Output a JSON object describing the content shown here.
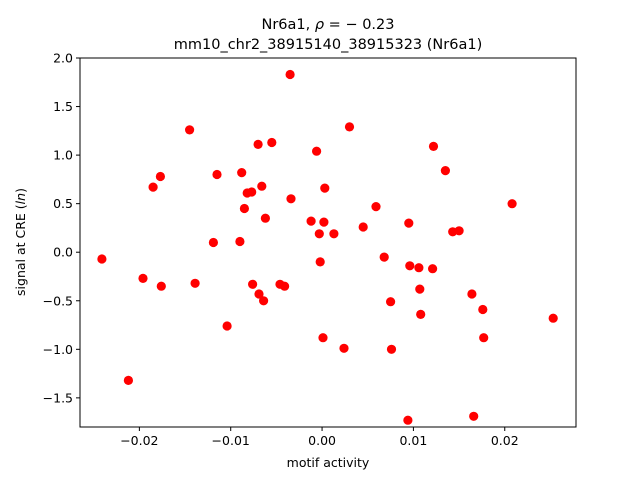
{
  "chart_data": {
    "type": "scatter",
    "title_line1_prefix": "Nr6a1, ",
    "title_line1_rho": "ρ",
    "title_line1_suffix": " = − 0.23",
    "title_line2": "mm10_chr2_38915140_38915323 (Nr6a1)",
    "xlabel": "motif activity",
    "ylabel_prefix": "signal at CRE (",
    "ylabel_italic": "ln",
    "ylabel_suffix": ")",
    "xlim": [
      -0.0265,
      0.0278
    ],
    "ylim": [
      -1.8,
      2.0
    ],
    "xticks": [
      -0.02,
      -0.01,
      0.0,
      0.01,
      0.02
    ],
    "xtick_labels": [
      "−0.02",
      "−0.01",
      "0.00",
      "0.01",
      "0.02"
    ],
    "yticks": [
      -1.5,
      -1.0,
      -0.5,
      0.0,
      0.5,
      1.0,
      1.5,
      2.0
    ],
    "ytick_labels": [
      "−1.5",
      "−1.0",
      "−0.5",
      "0.0",
      "0.5",
      "1.0",
      "1.5",
      "2.0"
    ],
    "grid": false,
    "marker_color": "#ff0000",
    "points": [
      [
        -0.0241,
        -0.07
      ],
      [
        -0.0212,
        -1.32
      ],
      [
        -0.0196,
        -0.27
      ],
      [
        -0.0185,
        0.67
      ],
      [
        -0.0177,
        0.78
      ],
      [
        -0.0176,
        -0.35
      ],
      [
        -0.0145,
        1.26
      ],
      [
        -0.0139,
        -0.32
      ],
      [
        -0.0119,
        0.1
      ],
      [
        -0.0115,
        0.8
      ],
      [
        -0.0104,
        -0.76
      ],
      [
        -0.009,
        0.11
      ],
      [
        -0.0088,
        0.82
      ],
      [
        -0.0085,
        0.45
      ],
      [
        -0.0082,
        0.61
      ],
      [
        -0.0077,
        0.62
      ],
      [
        -0.0076,
        -0.33
      ],
      [
        -0.007,
        1.11
      ],
      [
        -0.0069,
        -0.43
      ],
      [
        -0.0066,
        0.68
      ],
      [
        -0.0064,
        -0.5
      ],
      [
        -0.0062,
        0.35
      ],
      [
        -0.0055,
        1.13
      ],
      [
        -0.0046,
        -0.33
      ],
      [
        -0.0041,
        -0.35
      ],
      [
        -0.0035,
        1.83
      ],
      [
        -0.0034,
        0.55
      ],
      [
        -0.0012,
        0.32
      ],
      [
        -0.0006,
        1.04
      ],
      [
        -0.0003,
        0.19
      ],
      [
        -0.0002,
        -0.1
      ],
      [
        0.0001,
        -0.88
      ],
      [
        0.0002,
        0.31
      ],
      [
        0.0003,
        0.66
      ],
      [
        0.0013,
        0.19
      ],
      [
        0.0024,
        -0.99
      ],
      [
        0.003,
        1.29
      ],
      [
        0.0045,
        0.26
      ],
      [
        0.0059,
        0.47
      ],
      [
        0.0068,
        -0.05
      ],
      [
        0.0075,
        -0.51
      ],
      [
        0.0076,
        -1.0
      ],
      [
        0.0094,
        -1.73
      ],
      [
        0.0095,
        0.3
      ],
      [
        0.0096,
        -0.14
      ],
      [
        0.0106,
        -0.16
      ],
      [
        0.0107,
        -0.38
      ],
      [
        0.0108,
        -0.64
      ],
      [
        0.0121,
        -0.17
      ],
      [
        0.0122,
        1.09
      ],
      [
        0.0135,
        0.84
      ],
      [
        0.0143,
        0.21
      ],
      [
        0.015,
        0.22
      ],
      [
        0.0164,
        -0.43
      ],
      [
        0.0166,
        -1.69
      ],
      [
        0.0176,
        -0.59
      ],
      [
        0.0177,
        -0.88
      ],
      [
        0.0208,
        0.5
      ],
      [
        0.0253,
        -0.68
      ]
    ]
  }
}
